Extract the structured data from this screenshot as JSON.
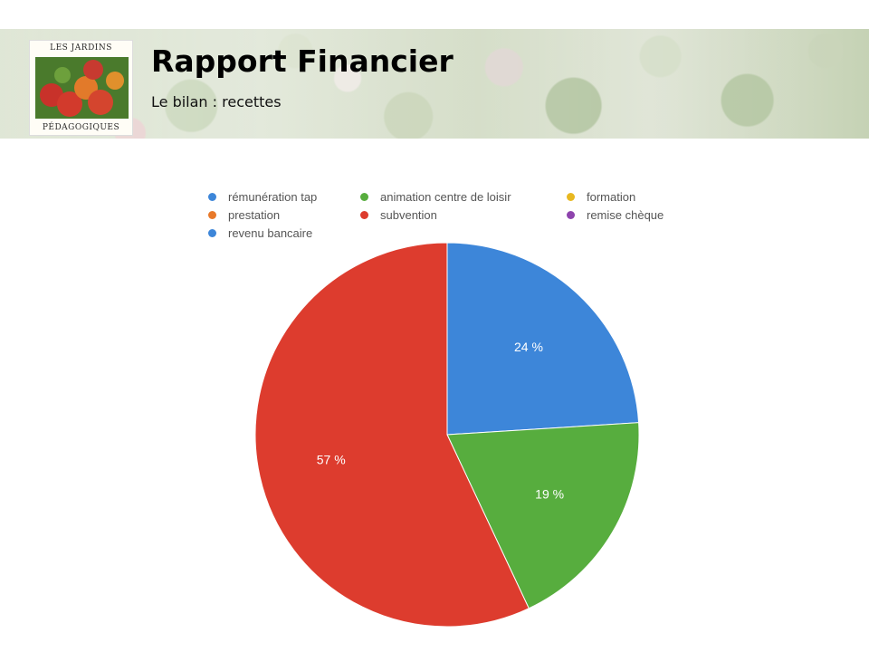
{
  "header": {
    "title": "Rapport Financier",
    "subtitle": "Le bilan : recettes",
    "logo_top_text": "LES JARDINS",
    "logo_bottom_text": "PÉDAGOGIQUES"
  },
  "chart_data": {
    "type": "pie",
    "title": "",
    "legend_position": "top",
    "slices": [
      {
        "label": "rémunération tap",
        "value": 24,
        "color": "#3d86d9",
        "data_label": "24 %"
      },
      {
        "label": "animation centre de loisir",
        "value": 19,
        "color": "#57ad3e",
        "data_label": "19 %"
      },
      {
        "label": "formation",
        "value": 0,
        "color": "#e8b820",
        "data_label": ""
      },
      {
        "label": "prestation",
        "value": 0,
        "color": "#e8792a",
        "data_label": ""
      },
      {
        "label": "subvention",
        "value": 57,
        "color": "#dd3c2e",
        "data_label": "57 %"
      },
      {
        "label": "remise chèque",
        "value": 0,
        "color": "#8e44ad",
        "data_label": ""
      },
      {
        "label": "revenu bancaire",
        "value": 0,
        "color": "#3d86d9",
        "data_label": ""
      }
    ]
  }
}
